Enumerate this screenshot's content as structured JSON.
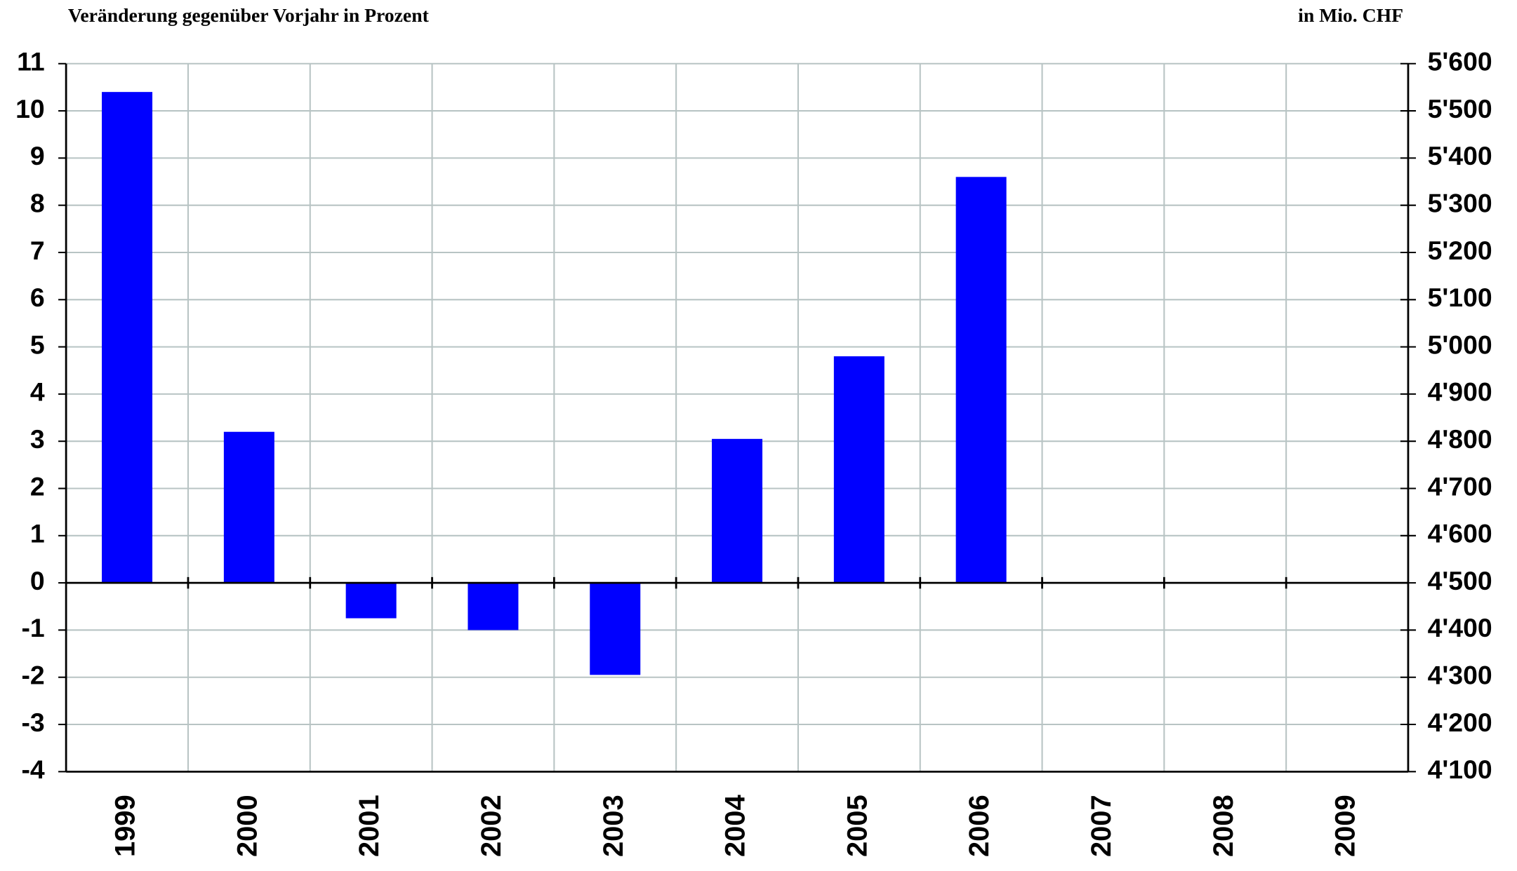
{
  "chart_data": {
    "type": "bar",
    "title": "Veränderung gegenüber Vorjahr in Prozent",
    "y2_label": "in Mio. CHF",
    "categories": [
      "1999",
      "2000",
      "2001",
      "2002",
      "2003",
      "2004",
      "2005",
      "2006",
      "2007",
      "2008",
      "2009"
    ],
    "values": [
      10.4,
      3.2,
      -0.75,
      -1.0,
      -1.95,
      3.05,
      4.8,
      8.6,
      null,
      null,
      null
    ],
    "color": "#0000ff",
    "ylim": [
      -4,
      11
    ],
    "yticks": [
      -4,
      -3,
      -2,
      -1,
      0,
      1,
      2,
      3,
      4,
      5,
      6,
      7,
      8,
      9,
      10,
      11
    ],
    "y2lim": [
      4100,
      5600
    ],
    "y2ticks": [
      {
        "value": 4100,
        "label": "4'100"
      },
      {
        "value": 4200,
        "label": "4'200"
      },
      {
        "value": 4300,
        "label": "4'300"
      },
      {
        "value": 4400,
        "label": "4'400"
      },
      {
        "value": 4500,
        "label": "4'500"
      },
      {
        "value": 4600,
        "label": "4'600"
      },
      {
        "value": 4700,
        "label": "4'700"
      },
      {
        "value": 4800,
        "label": "4'800"
      },
      {
        "value": 4900,
        "label": "4'900"
      },
      {
        "value": 5000,
        "label": "5'000"
      },
      {
        "value": 5100,
        "label": "5'100"
      },
      {
        "value": 5200,
        "label": "5'200"
      },
      {
        "value": 5300,
        "label": "5'300"
      },
      {
        "value": 5400,
        "label": "5'400"
      },
      {
        "value": 5500,
        "label": "5'500"
      },
      {
        "value": 5600,
        "label": "5'600"
      }
    ],
    "grid": true
  }
}
